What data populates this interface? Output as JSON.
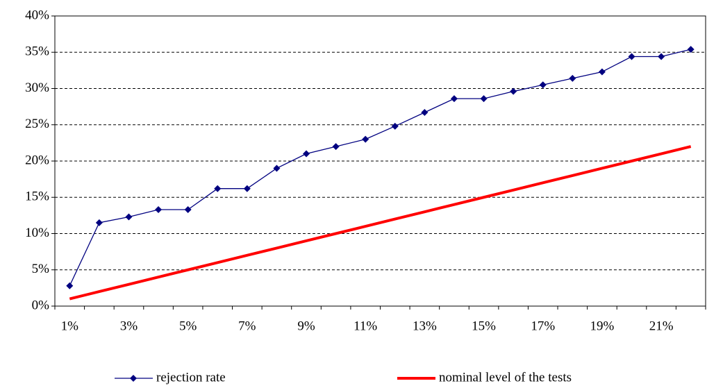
{
  "chart_data": {
    "type": "line",
    "categories": [
      "1%",
      null,
      "3%",
      null,
      "5%",
      null,
      "7%",
      null,
      "9%",
      null,
      "11%",
      null,
      "13%",
      null,
      "15%",
      null,
      "17%",
      null,
      "19%",
      null,
      "21%",
      null
    ],
    "series": [
      {
        "name": "rejection rate",
        "color": "#000080",
        "marker": "diamond",
        "values": [
          2.8,
          11.5,
          12.3,
          13.3,
          13.3,
          16.2,
          16.2,
          19.0,
          21.0,
          22.0,
          23.0,
          24.8,
          26.7,
          28.6,
          28.6,
          29.6,
          30.5,
          31.4,
          32.3,
          34.4,
          34.4,
          35.4
        ]
      },
      {
        "name": "nominal level of the tests",
        "color": "#ff0000",
        "values": [
          1,
          2,
          3,
          4,
          5,
          6,
          7,
          8,
          9,
          10,
          11,
          12,
          13,
          14,
          15,
          16,
          17,
          18,
          19,
          20,
          21,
          22
        ]
      }
    ],
    "ylim": [
      0,
      40
    ],
    "yticks": [
      {
        "value": 0,
        "label": "0%"
      },
      {
        "value": 5,
        "label": "5%"
      },
      {
        "value": 10,
        "label": "10%"
      },
      {
        "value": 15,
        "label": "15%"
      },
      {
        "value": 20,
        "label": "20%"
      },
      {
        "value": 25,
        "label": "25%"
      },
      {
        "value": 30,
        "label": "30%"
      },
      {
        "value": 35,
        "label": "35%"
      },
      {
        "value": 40,
        "label": "40%"
      }
    ],
    "grid": true,
    "legend": "bottom"
  }
}
